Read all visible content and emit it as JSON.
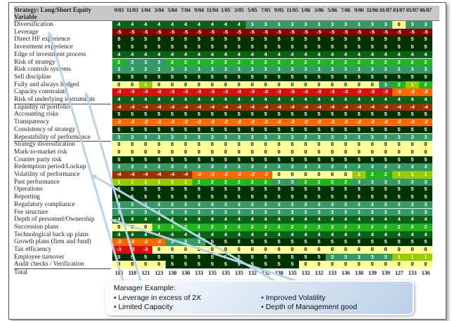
{
  "header": {
    "strategy": "Strategy: Long/Short Equity",
    "variable": "Variable"
  },
  "columns": [
    "9/03",
    "11/03",
    "1/04",
    "3/04",
    "5/04",
    "7/04",
    "9/04",
    "11/04",
    "1/05",
    "3/05",
    "5/05",
    "7/05",
    "9/05",
    "11/05",
    "1/06",
    "3/06",
    "5/06",
    "7/06",
    "9/06",
    "11/06",
    "01/07",
    "03/07",
    "05/07",
    "06/07"
  ],
  "rows": [
    {
      "label": "Diversification",
      "values": [
        4,
        4,
        4,
        4,
        4,
        4,
        4,
        4,
        4,
        4,
        3,
        3,
        3,
        3,
        3,
        3,
        3,
        3,
        3,
        3,
        3,
        0,
        3,
        3
      ]
    },
    {
      "label": "Leverage",
      "values": [
        -5,
        -5,
        -5,
        -5,
        -5,
        -5,
        -5,
        -5,
        -5,
        -5,
        -5,
        -5,
        -5,
        -5,
        -5,
        -5,
        -5,
        -5,
        -5,
        -5,
        -5,
        -5,
        -5,
        -5
      ]
    },
    {
      "label": "Direct HF experience",
      "values": [
        5,
        5,
        5,
        5,
        5,
        5,
        5,
        5,
        5,
        5,
        5,
        5,
        5,
        5,
        5,
        5,
        5,
        5,
        5,
        5,
        5,
        5,
        5,
        5
      ]
    },
    {
      "label": "Investment experience",
      "values": [
        5,
        5,
        5,
        5,
        5,
        5,
        5,
        5,
        5,
        5,
        5,
        5,
        5,
        5,
        5,
        5,
        5,
        5,
        5,
        5,
        5,
        5,
        5,
        5
      ]
    },
    {
      "label": "Edge of investment process",
      "values": [
        4,
        4,
        4,
        4,
        4,
        4,
        4,
        4,
        4,
        4,
        4,
        4,
        4,
        4,
        4,
        4,
        4,
        4,
        4,
        4,
        4,
        4,
        4,
        4
      ]
    },
    {
      "label": "Risk of strategy",
      "values": [
        2,
        3,
        3,
        3,
        2,
        2,
        2,
        2,
        2,
        2,
        2,
        2,
        2,
        2,
        2,
        2,
        2,
        2,
        2,
        2,
        2,
        2,
        2,
        2
      ]
    },
    {
      "label": "Risk controls systems",
      "values": [
        3,
        3,
        3,
        3,
        3,
        3,
        3,
        3,
        3,
        3,
        3,
        3,
        3,
        3,
        3,
        3,
        3,
        3,
        3,
        3,
        3,
        3,
        3,
        3
      ]
    },
    {
      "label": "Sell discipline",
      "values": [
        5,
        5,
        5,
        5,
        5,
        5,
        5,
        5,
        5,
        5,
        5,
        5,
        5,
        5,
        5,
        5,
        5,
        5,
        5,
        5,
        5,
        5,
        5,
        5
      ]
    },
    {
      "label": "Fully and always hedged",
      "values": [
        0,
        0,
        1,
        0,
        0,
        0,
        0,
        0,
        0,
        0,
        0,
        0,
        0,
        0,
        0,
        0,
        0,
        0,
        0,
        0,
        3,
        2,
        1,
        2
      ]
    },
    {
      "label": "Capacity constraints",
      "values": [
        -3,
        -3,
        -3,
        -3,
        -3,
        -3,
        -3,
        -3,
        -3,
        -3,
        -3,
        -3,
        -3,
        -3,
        -3,
        -3,
        -3,
        -3,
        -3,
        -3,
        -3,
        -2,
        -2,
        -2
      ]
    },
    {
      "label": "Risk of underlying instruments",
      "values": [
        4,
        4,
        4,
        4,
        4,
        4,
        4,
        4,
        4,
        4,
        4,
        4,
        4,
        4,
        4,
        4,
        4,
        4,
        4,
        4,
        4,
        4,
        4,
        4
      ],
      "sep": true
    },
    {
      "label": "Liquidity of portfolio",
      "values": [
        -4,
        -4,
        -4,
        -4,
        -4,
        -4,
        -4,
        -4,
        -4,
        -4,
        -4,
        -4,
        -4,
        -4,
        -4,
        -4,
        -4,
        -4,
        -4,
        -4,
        -4,
        -4,
        -4,
        -4
      ]
    },
    {
      "label": "Accounting risks",
      "values": [
        5,
        5,
        5,
        5,
        5,
        5,
        5,
        5,
        5,
        5,
        5,
        5,
        5,
        5,
        5,
        5,
        5,
        5,
        5,
        5,
        5,
        5,
        5,
        5
      ]
    },
    {
      "label": "Transparency",
      "values": [
        -2,
        -2,
        -2,
        -2,
        -2,
        -2,
        -2,
        -2,
        -2,
        -2,
        -2,
        -2,
        -2,
        -2,
        -2,
        -2,
        -2,
        -2,
        -2,
        -2,
        -2,
        -2,
        -2,
        -2
      ]
    },
    {
      "label": "Consistency of strategy",
      "values": [
        5,
        5,
        5,
        5,
        5,
        5,
        5,
        5,
        5,
        5,
        5,
        5,
        5,
        5,
        5,
        5,
        5,
        5,
        5,
        5,
        5,
        5,
        5,
        5
      ]
    },
    {
      "label": "Repeatability of performance",
      "values": [
        3,
        3,
        3,
        3,
        3,
        3,
        3,
        3,
        3,
        3,
        3,
        3,
        3,
        3,
        3,
        3,
        3,
        3,
        3,
        3,
        3,
        3,
        3,
        3
      ],
      "sep": true
    },
    {
      "label": "Strategy diversification",
      "values": [
        0,
        0,
        0,
        0,
        0,
        0,
        0,
        0,
        0,
        0,
        0,
        0,
        0,
        0,
        0,
        0,
        0,
        0,
        0,
        0,
        0,
        0,
        0,
        0
      ]
    },
    {
      "label": "Mark-to-market risk",
      "values": [
        0,
        0,
        0,
        0,
        0,
        0,
        0,
        0,
        0,
        0,
        0,
        0,
        0,
        0,
        0,
        0,
        0,
        0,
        0,
        0,
        0,
        0,
        0,
        0
      ]
    },
    {
      "label": "Counter party risk",
      "values": [
        5,
        5,
        5,
        5,
        5,
        5,
        5,
        5,
        5,
        5,
        5,
        5,
        5,
        5,
        5,
        5,
        5,
        5,
        5,
        5,
        5,
        5,
        5,
        5
      ]
    },
    {
      "label": "Redemption period/Lockup",
      "values": [
        3,
        3,
        3,
        3,
        3,
        3,
        3,
        3,
        3,
        3,
        3,
        3,
        3,
        3,
        3,
        3,
        3,
        3,
        3,
        3,
        3,
        3,
        3,
        3
      ]
    },
    {
      "label": "Volatility of performance",
      "values": [
        -4,
        -4,
        -4,
        -4,
        -4,
        -4,
        -2,
        -2,
        -2,
        -2,
        -2,
        -2,
        0,
        0,
        0,
        0,
        0,
        0,
        1,
        2,
        2,
        1,
        1,
        1
      ]
    },
    {
      "label": "Past performance",
      "values": [
        1,
        1,
        1,
        1,
        1,
        1,
        2,
        2,
        2,
        2,
        2,
        2,
        3,
        3,
        2,
        2,
        2,
        2,
        3,
        3,
        3,
        3,
        3,
        3
      ]
    },
    {
      "label": "Operations",
      "values": [
        5,
        5,
        5,
        5,
        5,
        5,
        5,
        5,
        5,
        5,
        5,
        5,
        5,
        5,
        5,
        5,
        5,
        5,
        5,
        5,
        5,
        5,
        5,
        5
      ]
    },
    {
      "label": "Reporting",
      "values": [
        5,
        5,
        5,
        5,
        5,
        5,
        5,
        5,
        5,
        5,
        5,
        5,
        5,
        5,
        5,
        5,
        5,
        5,
        5,
        5,
        5,
        5,
        5,
        5
      ]
    },
    {
      "label": "Regulatory compliance",
      "values": [
        3,
        3,
        3,
        3,
        3,
        3,
        3,
        3,
        3,
        3,
        3,
        3,
        3,
        3,
        3,
        3,
        3,
        3,
        3,
        3,
        3,
        3,
        3,
        3
      ]
    },
    {
      "label": "Fee structure",
      "values": [
        3,
        3,
        3,
        3,
        3,
        3,
        3,
        3,
        3,
        3,
        3,
        3,
        3,
        3,
        3,
        3,
        3,
        3,
        3,
        3,
        3,
        3,
        3,
        3
      ]
    },
    {
      "label": "Depth of personnel/Ownership",
      "values": [
        4,
        4,
        4,
        4,
        4,
        4,
        4,
        4,
        4,
        4,
        4,
        4,
        4,
        4,
        4,
        4,
        4,
        4,
        4,
        4,
        4,
        4,
        4,
        4
      ]
    },
    {
      "label": "Succession plans",
      "values": [
        0,
        0,
        0,
        2,
        2,
        2,
        2,
        2,
        2,
        2,
        2,
        2,
        2,
        2,
        2,
        2,
        2,
        2,
        2,
        2,
        2,
        2,
        2,
        2
      ]
    },
    {
      "label": "Technological back up plans",
      "values": [
        4,
        4,
        4,
        4,
        4,
        4,
        4,
        4,
        4,
        4,
        4,
        4,
        4,
        4,
        4,
        4,
        4,
        4,
        4,
        4,
        4,
        4,
        4,
        4
      ]
    },
    {
      "label": "Growth plans (firm and fund)",
      "values": [
        -2,
        -2,
        -2,
        -2,
        3,
        3,
        3,
        5,
        5,
        5,
        5,
        5,
        5,
        5,
        5,
        5,
        5,
        5,
        5,
        5,
        5,
        5,
        5,
        5
      ]
    },
    {
      "label": "Tax efficiency",
      "values": [
        -3,
        -3,
        -3,
        0,
        0,
        0,
        0,
        0,
        0,
        0,
        0,
        0,
        0,
        0,
        0,
        0,
        0,
        0,
        0,
        0,
        0,
        0,
        0,
        0
      ]
    },
    {
      "label": "Employee turnover",
      "values": [
        5,
        5,
        5,
        5,
        5,
        5,
        5,
        5,
        5,
        5,
        5,
        5,
        5,
        5,
        5,
        5,
        3,
        3,
        3,
        3,
        3,
        1,
        1,
        1
      ]
    },
    {
      "label": "Audit checks / Verification",
      "values": [
        0,
        0,
        0,
        0,
        5,
        5,
        5,
        5,
        5,
        5,
        5,
        5,
        5,
        5,
        0,
        0,
        0,
        0,
        0,
        0,
        0,
        0,
        0,
        0
      ],
      "sep": true
    }
  ],
  "total": {
    "label": "Total",
    "values": [
      115,
      118,
      121,
      123,
      130,
      130,
      133,
      135,
      135,
      135,
      132,
      132,
      138,
      135,
      132,
      132,
      133,
      136,
      138,
      139,
      139,
      127,
      133,
      136
    ]
  },
  "callout": {
    "title": "Manager Example:",
    "bullets": [
      "Leverage in excess of 2X",
      "Limited Capacity",
      "Improved Volatility",
      "Depth of Management good"
    ]
  },
  "colors": {
    "5": "#003300",
    "4": "#0b6117",
    "3": "#339966",
    "2": "#22b41e",
    "1": "#99cc00",
    "0": "#ffff99",
    "-2": "#ff6600",
    "-3": "#dd0b0b",
    "-4": "#993300",
    "-5": "#8b0000",
    "arrow": "#b7d3ea"
  }
}
